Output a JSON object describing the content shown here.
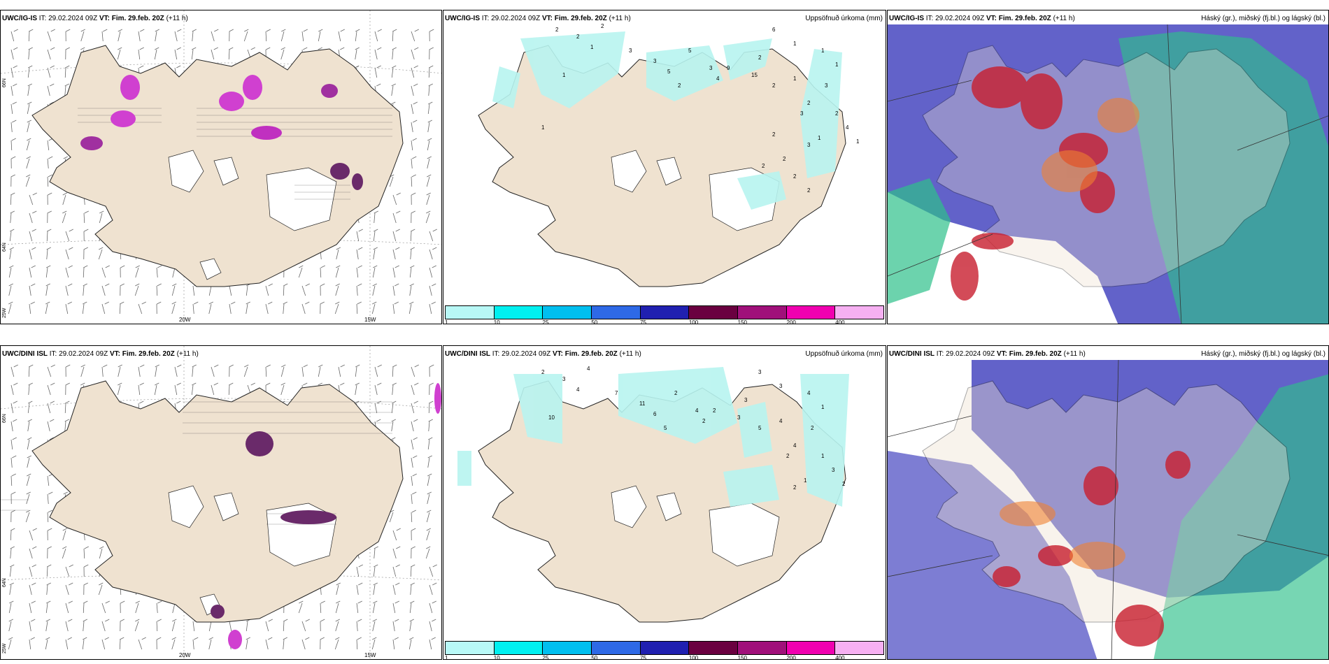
{
  "rows": [
    {
      "model": "UWC/IG-IS",
      "issue": "IT: 29.02.2024 09Z",
      "valid_label": "VT:",
      "valid": "Fim. 29.feb. 20Z",
      "lead": "(+11 h)"
    },
    {
      "model": "UWC/DINI ISL",
      "issue": "IT: 29.02.2024 09Z",
      "valid_label": "VT:",
      "valid": "Fim. 29.feb. 20Z",
      "lead": "(+11 h)"
    }
  ],
  "precip_title": "Uppsöfnuð úrkoma (mm)",
  "cloud_title": "Háský (gr.), miðský (fj.bl.) og lágský (bl.)",
  "axis_labels": {
    "lat_top": "66N",
    "lat_mid": "64N",
    "lon_corner": "25W",
    "lon_20": "20W",
    "lon_15": "15W",
    "lat_right_top": "66N",
    "lat_right_mid": "64N"
  },
  "colorbar": {
    "colors": [
      "#b8f8f6",
      "#00f0f0",
      "#00bfef",
      "#2e69e6",
      "#2020b0",
      "#6a0040",
      "#a0107a",
      "#f000b0",
      "#f6b0f2"
    ],
    "ticks": [
      "1",
      "10",
      "25",
      "50",
      "75",
      "100",
      "150",
      "200",
      "400"
    ]
  },
  "precip_labels_top": [
    "2",
    "2",
    "2",
    "1",
    "1",
    "3",
    "3",
    "5",
    "2",
    "5",
    "3",
    "4",
    "2",
    "15",
    "2",
    "1",
    "2",
    "3",
    "9",
    "6",
    "1",
    "1",
    "1",
    "3",
    "3",
    "2",
    "4",
    "1",
    "1",
    "2",
    "2",
    "2",
    "2",
    "2",
    "1"
  ],
  "precip_labels_bottom": [
    "2",
    "3",
    "4",
    "4",
    "10",
    "7",
    "11",
    "6",
    "5",
    "2",
    "4",
    "2",
    "3",
    "3",
    "5",
    "4",
    "4",
    "2",
    "2",
    "3",
    "3",
    "4",
    "1",
    "2",
    "2",
    "1",
    "3",
    "2",
    "1"
  ],
  "colors": {
    "land": "#efe2d0",
    "coast": "#222222",
    "snow_light": "#f2b0ee",
    "snow_mid": "#d040d0",
    "snow_dark": "#6a2a6a",
    "precip": "#b8f4f0",
    "cloud_high": "#5050c8",
    "cloud_mid": "#2ec08a",
    "cloud_low": "#d8302a"
  }
}
